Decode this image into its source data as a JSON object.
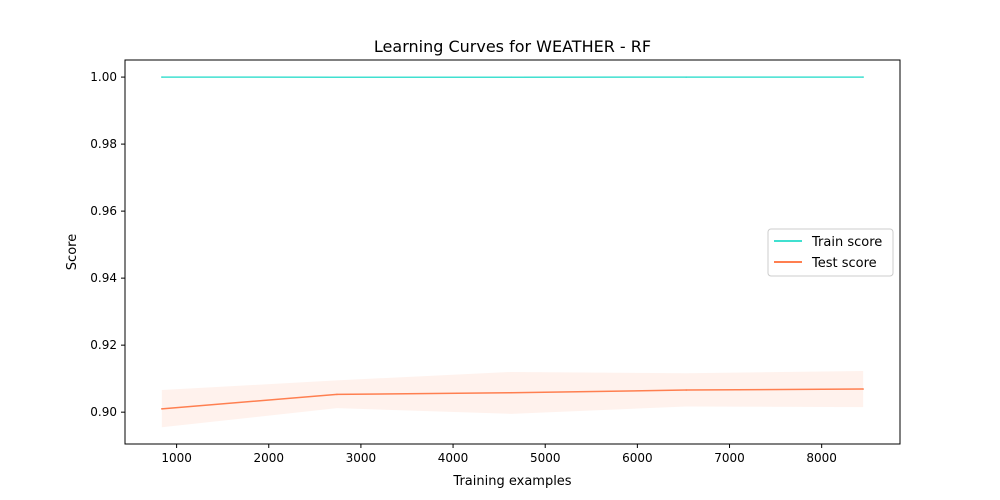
{
  "chart_data": {
    "type": "line",
    "title": "Learning Curves for WEATHER - RF",
    "xlabel": "Training examples",
    "ylabel": "Score",
    "xlim": [
      440,
      8850
    ],
    "ylim": [
      0.8905,
      1.0051
    ],
    "x_ticks": [
      1000,
      2000,
      3000,
      4000,
      5000,
      6000,
      7000,
      8000
    ],
    "y_ticks": [
      0.9,
      0.92,
      0.94,
      0.96,
      0.98,
      1.0
    ],
    "x_tick_labels": [
      "1000",
      "2000",
      "3000",
      "4000",
      "5000",
      "6000",
      "7000",
      "8000"
    ],
    "y_tick_labels": [
      "0.90",
      "0.92",
      "0.94",
      "0.96",
      "0.98",
      "1.00"
    ],
    "grid": false,
    "legend_position": "right",
    "x": [
      840,
      2740,
      4630,
      6530,
      8450
    ],
    "series": [
      {
        "name": "Train score",
        "color": "#40e0d0",
        "values": [
          1.0,
          0.99995,
          0.99997,
          0.99998,
          1.0
        ],
        "band_lower": [
          1.0,
          0.9999,
          0.99994,
          0.99996,
          1.0
        ],
        "band_upper": [
          1.0,
          1.0,
          1.0,
          1.0,
          1.0
        ]
      },
      {
        "name": "Test score",
        "color": "#ff7f50",
        "values": [
          0.901,
          0.9053,
          0.9058,
          0.9066,
          0.9069
        ],
        "band_lower": [
          0.8955,
          0.9012,
          0.8995,
          0.9017,
          0.9015
        ],
        "band_upper": [
          0.9066,
          0.9095,
          0.912,
          0.9116,
          0.9123
        ]
      }
    ]
  }
}
